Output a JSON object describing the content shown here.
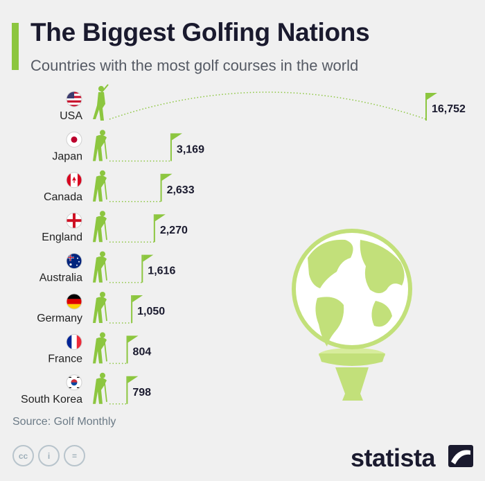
{
  "header": {
    "title": "The Biggest Golfing Nations",
    "subtitle": "Countries with the most golf courses in the world"
  },
  "chart_data": {
    "type": "bar",
    "title": "The Biggest Golfing Nations",
    "subtitle": "Countries with the most golf courses in the world",
    "categories": [
      "USA",
      "Japan",
      "Canada",
      "England",
      "Australia",
      "Germany",
      "France",
      "South Korea"
    ],
    "values": [
      16752,
      3169,
      2633,
      2270,
      1616,
      1050,
      804,
      798
    ],
    "value_labels": [
      "16,752",
      "3,169",
      "2,633",
      "2,270",
      "1,616",
      "1,050",
      "804",
      "798"
    ],
    "flags": [
      "flag-usa-icon",
      "flag-japan-icon",
      "flag-canada-icon",
      "flag-england-icon",
      "flag-australia-icon",
      "flag-germany-icon",
      "flag-france-icon",
      "flag-south-korea-icon"
    ],
    "colors": {
      "accent": "#8cc63f",
      "dark": "#1a1a2e"
    }
  },
  "footer": {
    "source": "Source: Golf Monthly",
    "license_icons": [
      "cc",
      "i",
      "="
    ],
    "brand": "statista"
  }
}
